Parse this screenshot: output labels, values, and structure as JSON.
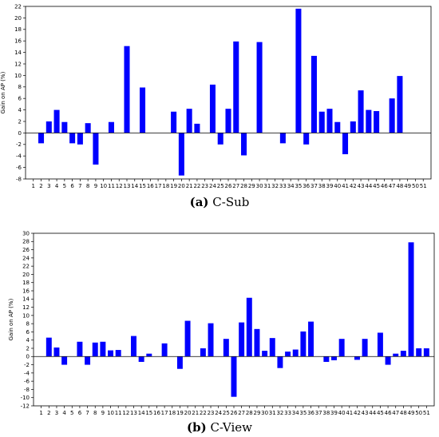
{
  "chart_data": [
    {
      "type": "bar",
      "color": "#0000ff",
      "caption_letter": "(a)",
      "caption_text": "C-Sub",
      "ylabel": "Gain on AP (%)",
      "ylim": [
        -8,
        22
      ],
      "yticks": [
        -8,
        -6,
        -4,
        -2,
        0,
        2,
        4,
        6,
        8,
        10,
        12,
        14,
        16,
        18,
        20,
        22
      ],
      "categories": [
        "1",
        "2",
        "3",
        "4",
        "5",
        "6",
        "7",
        "8",
        "9",
        "10",
        "11",
        "12",
        "13",
        "14",
        "15",
        "16",
        "17",
        "18",
        "19",
        "20",
        "21",
        "22",
        "23",
        "24",
        "25",
        "26",
        "27",
        "28",
        "29",
        "30",
        "31",
        "32",
        "33",
        "34",
        "35",
        "36",
        "37",
        "38",
        "39",
        "40",
        "41",
        "42",
        "43",
        "44",
        "45",
        "46",
        "47",
        "48",
        "49",
        "50",
        "51"
      ],
      "values": [
        0,
        -1.8,
        2.0,
        4.0,
        1.9,
        -1.8,
        -2.0,
        1.7,
        -5.5,
        0,
        1.9,
        0,
        15.1,
        0,
        7.9,
        0,
        0,
        0,
        3.7,
        -7.4,
        4.2,
        1.6,
        0,
        8.4,
        -2.0,
        4.2,
        15.9,
        -3.9,
        0,
        15.8,
        0,
        0,
        -1.8,
        0,
        21.6,
        -2.0,
        13.4,
        3.7,
        4.2,
        1.9,
        -3.7,
        2.0,
        7.4,
        4.0,
        3.8,
        0,
        6.0,
        9.9,
        0,
        0,
        0
      ]
    },
    {
      "type": "bar",
      "color": "#0000ff",
      "caption_letter": "(b)",
      "caption_text": "C-View",
      "ylabel": "Gain on AP (%)",
      "ylim": [
        -12,
        30
      ],
      "yticks": [
        -12,
        -10,
        -8,
        -6,
        -4,
        -2,
        0,
        2,
        4,
        6,
        8,
        10,
        12,
        14,
        16,
        18,
        20,
        22,
        24,
        26,
        28,
        30
      ],
      "categories": [
        "1",
        "2",
        "3",
        "4",
        "5",
        "6",
        "7",
        "8",
        "9",
        "10",
        "11",
        "12",
        "13",
        "14",
        "15",
        "16",
        "17",
        "18",
        "19",
        "20",
        "21",
        "22",
        "23",
        "24",
        "25",
        "26",
        "27",
        "28",
        "29",
        "30",
        "31",
        "32",
        "33",
        "34",
        "35",
        "36",
        "37",
        "38",
        "39",
        "40",
        "41",
        "42",
        "43",
        "44",
        "45",
        "46",
        "47",
        "48",
        "49",
        "50",
        "51"
      ],
      "values": [
        0,
        4.6,
        2.2,
        -2.0,
        0,
        3.6,
        -2.0,
        3.4,
        3.6,
        1.5,
        1.6,
        0,
        5.0,
        -1.3,
        0.7,
        0,
        3.2,
        0,
        -3.0,
        8.7,
        0,
        2.0,
        8.1,
        0,
        4.3,
        -9.8,
        8.3,
        14.3,
        6.7,
        1.4,
        4.5,
        -2.8,
        1.2,
        1.7,
        6.1,
        8.5,
        0,
        -1.3,
        -0.9,
        4.3,
        0,
        -0.8,
        4.3,
        0,
        5.8,
        -2.0,
        0.7,
        1.4,
        27.8,
        2.0,
        2.0
      ]
    }
  ]
}
